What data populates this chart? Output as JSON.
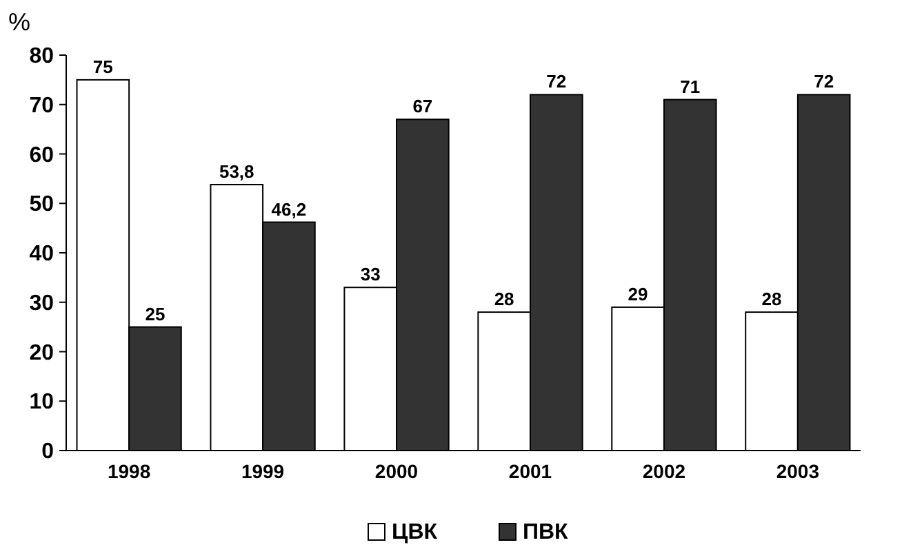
{
  "chart_data": {
    "type": "bar",
    "ylabel": "%",
    "categories": [
      "1998",
      "1999",
      "2000",
      "2001",
      "2002",
      "2003"
    ],
    "series": [
      {
        "name": "ЦВК",
        "color": "#ffffff",
        "values": [
          75,
          53.8,
          33,
          28,
          29,
          28
        ],
        "value_labels": [
          "75",
          "53,8",
          "33",
          "28",
          "29",
          "28"
        ]
      },
      {
        "name": "ПВК",
        "color": "#333333",
        "values": [
          25,
          46.2,
          67,
          72,
          71,
          72
        ],
        "value_labels": [
          "25",
          "46,2",
          "67",
          "72",
          "71",
          "72"
        ]
      }
    ],
    "ylim": [
      0,
      80
    ],
    "yticks": [
      0,
      10,
      20,
      30,
      40,
      50,
      60,
      70,
      80
    ],
    "grid": false,
    "legend": "bottom"
  }
}
